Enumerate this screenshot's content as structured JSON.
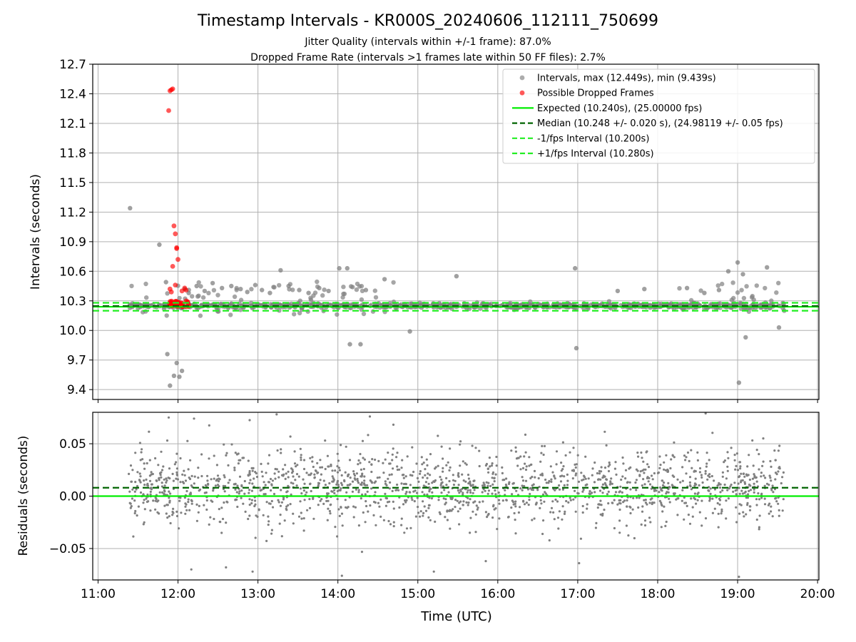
{
  "title": "Timestamp Intervals - KR000S_20240606_112111_750699",
  "subtitle_line1": "Jitter Quality (intervals within +/-1 frame): 87.0%",
  "subtitle_line2": "Dropped Frame Rate (intervals >1 frames late within 50 FF files): 2.7%",
  "colors": {
    "intervals": "#808080",
    "dropped": "#ff0000",
    "expected": "#00ee00",
    "median": "#006400",
    "fps_bounds": "#22ee22",
    "grid": "#b0b0b0"
  },
  "chart_data": [
    {
      "type": "scatter",
      "panel": "top",
      "xlabel": "",
      "ylabel": "Intervals (seconds)",
      "ylim": [
        9.3,
        12.7
      ],
      "yticks": [
        9.4,
        9.7,
        10.0,
        10.3,
        10.6,
        10.9,
        11.2,
        11.5,
        11.8,
        12.1,
        12.4,
        12.7
      ],
      "ytick_labels": [
        "9.4",
        "9.7",
        "10.0",
        "10.3",
        "10.6",
        "10.9",
        "11.2",
        "11.5",
        "11.8",
        "12.1",
        "12.4",
        "12.7"
      ],
      "grid": true,
      "legend_position": "top-right",
      "legend": [
        {
          "label": "Intervals, max (12.449s), min (9.439s)",
          "kind": "marker",
          "color": "#808080"
        },
        {
          "label": "Possible Dropped Frames",
          "kind": "marker",
          "color": "#ff0000"
        },
        {
          "label": "Expected (10.240s), (25.00000 fps)",
          "kind": "solid",
          "color": "#00ee00"
        },
        {
          "label": "Median (10.248 +/- 0.020 s), (24.98119 +/- 0.05 fps)",
          "kind": "dashed",
          "color": "#006400"
        },
        {
          "label": "-1/fps Interval (10.200s)",
          "kind": "dashed",
          "color": "#22ee22"
        },
        {
          "label": "+1/fps Interval (10.280s)",
          "kind": "dashed",
          "color": "#22ee22"
        }
      ],
      "reference_lines": {
        "expected": 10.24,
        "median": 10.248,
        "lower_fps": 10.2,
        "upper_fps": 10.28
      },
      "time_range": [
        "11:23",
        "19:36"
      ],
      "series": [
        {
          "name": "Intervals, max (12.449s), min (9.439s)",
          "x": [
            "11:24",
            "11:46",
            "11:51",
            "11:52",
            "11:54",
            "11:57",
            "11:59",
            "12:01",
            "12:03",
            "12:05",
            "12:08",
            "12:14",
            "12:20",
            "12:26",
            "12:33",
            "12:40",
            "12:47",
            "12:52",
            "12:58",
            "13:03",
            "13:09",
            "13:17",
            "13:23",
            "13:31",
            "13:38",
            "13:46",
            "13:53",
            "14:01",
            "14:07",
            "14:09",
            "14:11",
            "14:17",
            "14:21",
            "14:35",
            "14:54",
            "15:29",
            "16:58",
            "16:59",
            "17:30",
            "17:50",
            "18:22",
            "18:35",
            "18:46",
            "18:53",
            "19:00",
            "19:01",
            "19:04",
            "19:06",
            "19:22",
            "19:31"
          ],
          "y": [
            11.24,
            10.87,
            10.49,
            9.76,
            9.44,
            9.54,
            9.67,
            9.53,
            9.59,
            10.42,
            10.38,
            10.45,
            10.4,
            10.48,
            10.43,
            10.45,
            10.42,
            10.39,
            10.46,
            10.41,
            10.38,
            10.61,
            10.45,
            10.41,
            10.38,
            10.43,
            10.4,
            10.63,
            10.63,
            9.86,
            10.44,
            9.86,
            10.41,
            10.52,
            9.99,
            10.55,
            10.63,
            9.82,
            10.4,
            10.42,
            10.43,
            10.38,
            10.41,
            10.6,
            10.69,
            9.47,
            10.57,
            9.93,
            10.64,
            10.03
          ],
          "note_count": "dense band of points around 10.25 s across full time range"
        },
        {
          "name": "Possible Dropped Frames",
          "x": [
            "11:53",
            "11:54",
            "11:55",
            "11:56",
            "11:57",
            "11:58",
            "11:59",
            "11:59",
            "12:00",
            "11:56",
            "11:58",
            "11:54",
            "11:55",
            "12:03",
            "12:05",
            "12:06"
          ],
          "y": [
            12.23,
            12.43,
            12.44,
            12.45,
            11.06,
            10.98,
            10.84,
            10.83,
            10.72,
            10.65,
            10.46,
            10.42,
            10.39,
            10.4,
            10.43,
            10.41
          ]
        }
      ]
    },
    {
      "type": "scatter",
      "panel": "bottom",
      "xlabel": "Time (UTC)",
      "ylabel": "Residuals (seconds)",
      "ylim": [
        -0.08,
        0.08
      ],
      "yticks": [
        -0.05,
        0.0,
        0.05
      ],
      "ytick_labels": [
        "−0.05",
        "0.00",
        "0.05"
      ],
      "xticks": [
        "11:00",
        "12:00",
        "13:00",
        "14:00",
        "15:00",
        "16:00",
        "17:00",
        "18:00",
        "19:00",
        "20:00"
      ],
      "xlim": [
        "10:56",
        "20:01"
      ],
      "grid": true,
      "reference_lines": {
        "zero": 0.0,
        "median_offset": 0.008
      },
      "series": [
        {
          "name": "",
          "spread_sigma": 0.025,
          "outlier_x": [
            "11:53",
            "12:10",
            "12:12",
            "12:36",
            "12:56",
            "13:14",
            "14:03",
            "14:24",
            "15:12",
            "15:51",
            "17:01",
            "18:36",
            "19:01"
          ],
          "outlier_y": [
            0.075,
            -0.07,
            0.074,
            -0.068,
            -0.072,
            0.078,
            -0.076,
            0.076,
            -0.072,
            -0.062,
            -0.064,
            0.079,
            -0.077
          ]
        }
      ]
    }
  ]
}
